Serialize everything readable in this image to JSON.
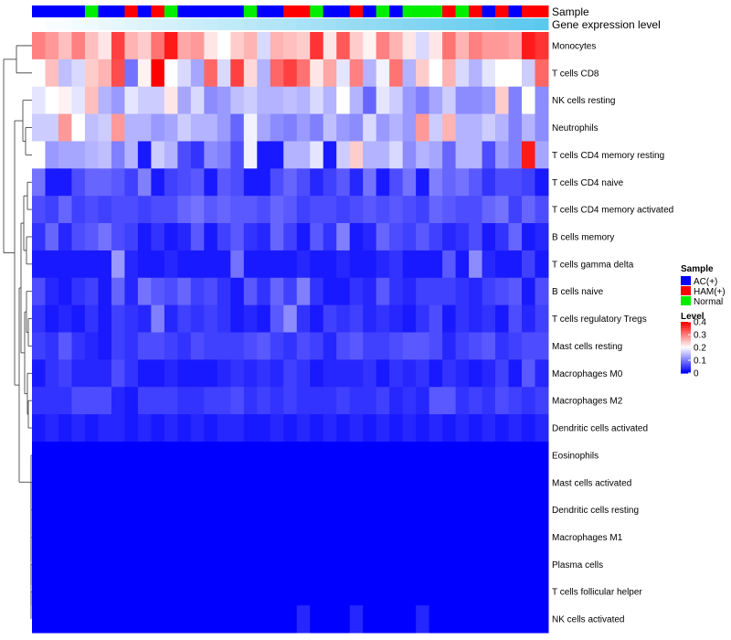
{
  "chart_data": {
    "type": "heatmap",
    "row_labels": [
      "Monocytes",
      "T cells CD8",
      "NK cells resting",
      "Neutrophils",
      "T cells CD4 memory resting",
      "T cells CD4 naive",
      "T cells CD4 memory activated",
      "B cells memory",
      "T cells gamma delta",
      "B cells naive",
      "T cells regulatory  Tregs",
      "Mast cells resting",
      "Macrophages M0",
      "Macrophages M2",
      "Dendritic cells activated",
      "Eosinophils",
      "Mast cells activated",
      "Dendritic cells resting",
      "Macrophages M1",
      "Plasma cells",
      "T cells follicular helper",
      "NK cells activated"
    ],
    "column_count": 39,
    "annotation_tracks": [
      {
        "name": "Sample",
        "values": [
          "AC(+)",
          "AC(+)",
          "AC(+)",
          "AC(+)",
          "Normal",
          "AC(+)",
          "AC(+)",
          "HAM(+)",
          "AC(+)",
          "HAM(+)",
          "Normal",
          "AC(+)",
          "AC(+)",
          "AC(+)",
          "AC(+)",
          "AC(+)",
          "Normal",
          "AC(+)",
          "AC(+)",
          "HAM(+)",
          "HAM(+)",
          "Normal",
          "AC(+)",
          "AC(+)",
          "HAM(+)",
          "AC(+)",
          "Normal",
          "AC(+)",
          "Normal",
          "Normal",
          "Normal",
          "HAM(+)",
          "Normal",
          "HAM(+)",
          "AC(+)",
          "HAM(+)",
          "AC(+)",
          "HAM(+)",
          "HAM(+)"
        ]
      },
      {
        "name": "Gene expression level",
        "values": [
          0,
          0.03,
          0.05,
          0.08,
          0.1,
          0.13,
          0.16,
          0.18,
          0.21,
          0.24,
          0.26,
          0.29,
          0.32,
          0.34,
          0.37,
          0.39,
          0.42,
          0.45,
          0.47,
          0.5,
          0.53,
          0.55,
          0.58,
          0.61,
          0.63,
          0.66,
          0.68,
          0.71,
          0.74,
          0.76,
          0.79,
          0.82,
          0.84,
          0.87,
          0.89,
          0.92,
          0.95,
          0.97,
          1
        ]
      }
    ],
    "values": [
      [
        0.3,
        0.28,
        0.25,
        0.3,
        0.25,
        0.22,
        0.35,
        0.26,
        0.24,
        0.31,
        0.38,
        0.27,
        0.28,
        0.22,
        0.2,
        0.24,
        0.26,
        0.17,
        0.26,
        0.25,
        0.24,
        0.36,
        0.22,
        0.33,
        0.24,
        0.21,
        0.3,
        0.26,
        0.22,
        0.17,
        0.22,
        0.31,
        0.26,
        0.3,
        0.28,
        0.28,
        0.27,
        0.38,
        0.36
      ],
      [
        0.2,
        0.25,
        0.15,
        0.17,
        0.24,
        0.26,
        0.34,
        0.09,
        0.21,
        0.4,
        0.2,
        0.17,
        0.13,
        0.32,
        0.17,
        0.35,
        0.23,
        0.14,
        0.32,
        0.35,
        0.31,
        0.22,
        0.27,
        0.18,
        0.3,
        0.14,
        0.19,
        0.31,
        0.14,
        0.24,
        0.2,
        0.26,
        0.17,
        0.14,
        0.18,
        0.2,
        0.2,
        0.16,
        0.32
      ],
      [
        0.18,
        0.2,
        0.21,
        0.18,
        0.25,
        0.14,
        0.12,
        0.18,
        0.16,
        0.16,
        0.22,
        0.13,
        0.17,
        0.11,
        0.12,
        0.15,
        0.16,
        0.14,
        0.14,
        0.15,
        0.14,
        0.17,
        0.14,
        0.2,
        0.14,
        0.08,
        0.18,
        0.16,
        0.12,
        0.1,
        0.13,
        0.16,
        0.11,
        0.11,
        0.12,
        0.24,
        0.1,
        0.2,
        0.11
      ],
      [
        0.16,
        0.16,
        0.28,
        0.2,
        0.15,
        0.16,
        0.28,
        0.14,
        0.14,
        0.12,
        0.13,
        0.16,
        0.14,
        0.14,
        0.12,
        0.08,
        0.19,
        0.13,
        0.11,
        0.1,
        0.12,
        0.1,
        0.15,
        0.12,
        0.11,
        0.17,
        0.12,
        0.14,
        0.12,
        0.28,
        0.16,
        0.26,
        0.14,
        0.14,
        0.16,
        0.14,
        0.1,
        0.14,
        0.11
      ],
      [
        0.2,
        0.12,
        0.13,
        0.13,
        0.14,
        0.15,
        0.1,
        0.14,
        0.02,
        0.16,
        0.14,
        0.06,
        0.04,
        0.11,
        0.1,
        0.06,
        0.19,
        0.02,
        0.02,
        0.14,
        0.14,
        0.18,
        0.02,
        0.16,
        0.24,
        0.14,
        0.14,
        0.17,
        0.11,
        0.14,
        0.13,
        0.08,
        0.14,
        0.14,
        0.06,
        0.12,
        0.1,
        0.38,
        0.13
      ],
      [
        0.09,
        0.02,
        0.02,
        0.06,
        0.08,
        0.08,
        0.07,
        0.05,
        0.1,
        0.02,
        0.05,
        0.06,
        0.07,
        0.02,
        0.07,
        0.06,
        0.02,
        0.02,
        0.06,
        0.08,
        0.06,
        0.03,
        0.05,
        0.07,
        0.03,
        0.09,
        0.02,
        0.06,
        0.09,
        0.02,
        0.1,
        0.08,
        0.09,
        0.07,
        0.04,
        0.06,
        0.06,
        0.05,
        0.02
      ],
      [
        0.06,
        0.05,
        0.08,
        0.05,
        0.06,
        0.05,
        0.06,
        0.06,
        0.05,
        0.06,
        0.06,
        0.08,
        0.09,
        0.07,
        0.08,
        0.07,
        0.07,
        0.06,
        0.08,
        0.07,
        0.05,
        0.06,
        0.06,
        0.05,
        0.06,
        0.07,
        0.06,
        0.07,
        0.06,
        0.05,
        0.08,
        0.07,
        0.06,
        0.06,
        0.08,
        0.09,
        0.05,
        0.08,
        0.06
      ],
      [
        0.04,
        0.08,
        0.03,
        0.06,
        0.07,
        0.09,
        0.06,
        0.05,
        0.02,
        0.04,
        0.02,
        0.03,
        0.07,
        0.02,
        0.05,
        0.07,
        0.04,
        0.03,
        0.08,
        0.05,
        0.02,
        0.07,
        0.04,
        0.1,
        0.02,
        0.03,
        0.08,
        0.06,
        0.05,
        0.07,
        0.05,
        0.03,
        0.04,
        0.06,
        0.02,
        0.04,
        0.08,
        0.02,
        0.03
      ],
      [
        0.02,
        0.02,
        0.02,
        0.02,
        0.02,
        0.02,
        0.12,
        0.03,
        0.02,
        0.02,
        0.03,
        0.02,
        0.02,
        0.02,
        0.02,
        0.09,
        0.02,
        0.02,
        0.02,
        0.02,
        0.03,
        0.02,
        0.02,
        0.03,
        0.02,
        0.02,
        0.03,
        0.04,
        0.02,
        0.02,
        0.02,
        0.07,
        0.02,
        0.11,
        0.03,
        0.02,
        0.02,
        0.05,
        0.02
      ],
      [
        0.06,
        0.03,
        0.02,
        0.04,
        0.05,
        0.02,
        0.08,
        0.03,
        0.09,
        0.07,
        0.06,
        0.08,
        0.05,
        0.06,
        0.04,
        0.02,
        0.07,
        0.04,
        0.08,
        0.05,
        0.1,
        0.04,
        0.02,
        0.02,
        0.04,
        0.03,
        0.07,
        0.04,
        0.03,
        0.05,
        0.05,
        0.05,
        0.04,
        0.03,
        0.05,
        0.06,
        0.07,
        0.02,
        0.06
      ],
      [
        0.04,
        0.02,
        0.03,
        0.02,
        0.04,
        0.02,
        0.05,
        0.04,
        0.03,
        0.1,
        0.03,
        0.05,
        0.04,
        0.05,
        0.04,
        0.02,
        0.03,
        0.02,
        0.07,
        0.11,
        0.04,
        0.02,
        0.05,
        0.04,
        0.05,
        0.03,
        0.04,
        0.03,
        0.02,
        0.04,
        0.06,
        0.02,
        0.04,
        0.03,
        0.04,
        0.02,
        0.06,
        0.03,
        0.05
      ],
      [
        0.05,
        0.04,
        0.07,
        0.04,
        0.03,
        0.02,
        0.05,
        0.04,
        0.06,
        0.06,
        0.05,
        0.04,
        0.06,
        0.05,
        0.05,
        0.05,
        0.06,
        0.07,
        0.05,
        0.04,
        0.06,
        0.05,
        0.03,
        0.06,
        0.07,
        0.05,
        0.05,
        0.06,
        0.07,
        0.07,
        0.06,
        0.03,
        0.05,
        0.06,
        0.07,
        0.04,
        0.05,
        0.06,
        0.06
      ],
      [
        0.02,
        0.04,
        0.05,
        0.03,
        0.03,
        0.03,
        0.06,
        0.04,
        0.02,
        0.02,
        0.03,
        0.02,
        0.02,
        0.02,
        0.03,
        0.04,
        0.03,
        0.04,
        0.03,
        0.05,
        0.04,
        0.02,
        0.03,
        0.03,
        0.03,
        0.04,
        0.02,
        0.04,
        0.03,
        0.04,
        0.02,
        0.04,
        0.03,
        0.02,
        0.03,
        0.05,
        0.02,
        0.07,
        0.03
      ],
      [
        0.04,
        0.04,
        0.04,
        0.06,
        0.06,
        0.06,
        0.03,
        0.02,
        0.05,
        0.05,
        0.05,
        0.04,
        0.04,
        0.05,
        0.05,
        0.06,
        0.04,
        0.05,
        0.04,
        0.05,
        0.04,
        0.04,
        0.04,
        0.05,
        0.04,
        0.04,
        0.05,
        0.03,
        0.04,
        0.03,
        0.07,
        0.07,
        0.04,
        0.05,
        0.04,
        0.06,
        0.05,
        0.04,
        0.05
      ],
      [
        0.02,
        0.03,
        0.02,
        0.03,
        0.02,
        0.03,
        0.03,
        0.02,
        0.03,
        0.02,
        0.03,
        0.02,
        0.03,
        0.02,
        0.03,
        0.03,
        0.02,
        0.02,
        0.03,
        0.02,
        0.03,
        0.02,
        0.03,
        0.02,
        0.03,
        0.02,
        0.03,
        0.02,
        0.03,
        0.02,
        0.03,
        0.02,
        0.03,
        0.02,
        0.03,
        0.02,
        0.03,
        0.02,
        0.03
      ],
      [
        0.0,
        0.0,
        0.0,
        0.0,
        0.0,
        0.0,
        0.0,
        0.0,
        0.0,
        0.0,
        0.0,
        0.0,
        0.0,
        0.0,
        0.0,
        0.0,
        0.0,
        0.0,
        0.0,
        0.0,
        0.0,
        0.0,
        0.0,
        0.0,
        0.0,
        0.0,
        0.0,
        0.0,
        0.0,
        0.0,
        0.0,
        0.0,
        0.0,
        0.0,
        0.0,
        0.0,
        0.0,
        0.0,
        0.0
      ],
      [
        0.0,
        0.0,
        0.0,
        0.0,
        0.0,
        0.0,
        0.0,
        0.0,
        0.0,
        0.0,
        0.0,
        0.0,
        0.0,
        0.0,
        0.0,
        0.0,
        0.0,
        0.0,
        0.0,
        0.0,
        0.0,
        0.0,
        0.0,
        0.0,
        0.0,
        0.0,
        0.0,
        0.0,
        0.0,
        0.0,
        0.0,
        0.0,
        0.0,
        0.0,
        0.0,
        0.0,
        0.0,
        0.0,
        0.0
      ],
      [
        0.0,
        0.0,
        0.0,
        0.0,
        0.0,
        0.0,
        0.0,
        0.0,
        0.0,
        0.0,
        0.0,
        0.0,
        0.0,
        0.0,
        0.0,
        0.0,
        0.0,
        0.0,
        0.0,
        0.0,
        0.0,
        0.0,
        0.0,
        0.0,
        0.0,
        0.0,
        0.0,
        0.0,
        0.0,
        0.0,
        0.0,
        0.0,
        0.0,
        0.0,
        0.0,
        0.0,
        0.0,
        0.0,
        0.0
      ],
      [
        0.0,
        0.0,
        0.0,
        0.0,
        0.0,
        0.0,
        0.0,
        0.0,
        0.0,
        0.0,
        0.0,
        0.0,
        0.0,
        0.0,
        0.0,
        0.0,
        0.0,
        0.0,
        0.0,
        0.0,
        0.0,
        0.0,
        0.0,
        0.0,
        0.0,
        0.0,
        0.0,
        0.0,
        0.0,
        0.0,
        0.0,
        0.0,
        0.0,
        0.0,
        0.0,
        0.0,
        0.0,
        0.0,
        0.0
      ],
      [
        0.0,
        0.0,
        0.0,
        0.0,
        0.0,
        0.0,
        0.0,
        0.0,
        0.0,
        0.0,
        0.0,
        0.0,
        0.0,
        0.0,
        0.0,
        0.0,
        0.0,
        0.0,
        0.0,
        0.0,
        0.0,
        0.0,
        0.0,
        0.0,
        0.0,
        0.0,
        0.0,
        0.0,
        0.0,
        0.0,
        0.0,
        0.0,
        0.0,
        0.0,
        0.0,
        0.0,
        0.0,
        0.0,
        0.0
      ],
      [
        0.0,
        0.0,
        0.0,
        0.0,
        0.0,
        0.0,
        0.0,
        0.0,
        0.0,
        0.0,
        0.0,
        0.0,
        0.0,
        0.0,
        0.0,
        0.0,
        0.0,
        0.0,
        0.0,
        0.0,
        0.0,
        0.0,
        0.0,
        0.0,
        0.0,
        0.0,
        0.0,
        0.0,
        0.0,
        0.0,
        0.0,
        0.0,
        0.0,
        0.0,
        0.0,
        0.0,
        0.0,
        0.0,
        0.0
      ],
      [
        0.0,
        0.0,
        0.0,
        0.0,
        0.0,
        0.0,
        0.0,
        0.0,
        0.0,
        0.0,
        0.0,
        0.0,
        0.0,
        0.0,
        0.0,
        0.0,
        0.0,
        0.0,
        0.0,
        0.0,
        0.03,
        0.0,
        0.0,
        0.0,
        0.03,
        0.0,
        0.0,
        0.0,
        0.0,
        0.03,
        0.0,
        0.0,
        0.0,
        0.0,
        0.0,
        0.0,
        0.0,
        0.0,
        0.0
      ]
    ],
    "legends": {
      "sample": {
        "title": "Sample",
        "entries": [
          {
            "label": "AC(+)",
            "color": "#0000ff"
          },
          {
            "label": "HAM(+)",
            "color": "#ff0000"
          },
          {
            "label": "Normal",
            "color": "#00ee00"
          }
        ]
      },
      "level": {
        "title": "Level",
        "ticks": [
          "0.4",
          "0.3",
          "0.2",
          "0.1",
          "0"
        ],
        "range": [
          0,
          0.4
        ]
      }
    },
    "color_scale": {
      "low": "#0000ff",
      "mid": "#ffffff",
      "high": "#ff0000",
      "mid_value": 0.2
    },
    "track_color_scale": {
      "low": "#ffffff",
      "high": "#5bc8ee"
    },
    "dendrogram": "rows clustered (hierarchical)"
  }
}
